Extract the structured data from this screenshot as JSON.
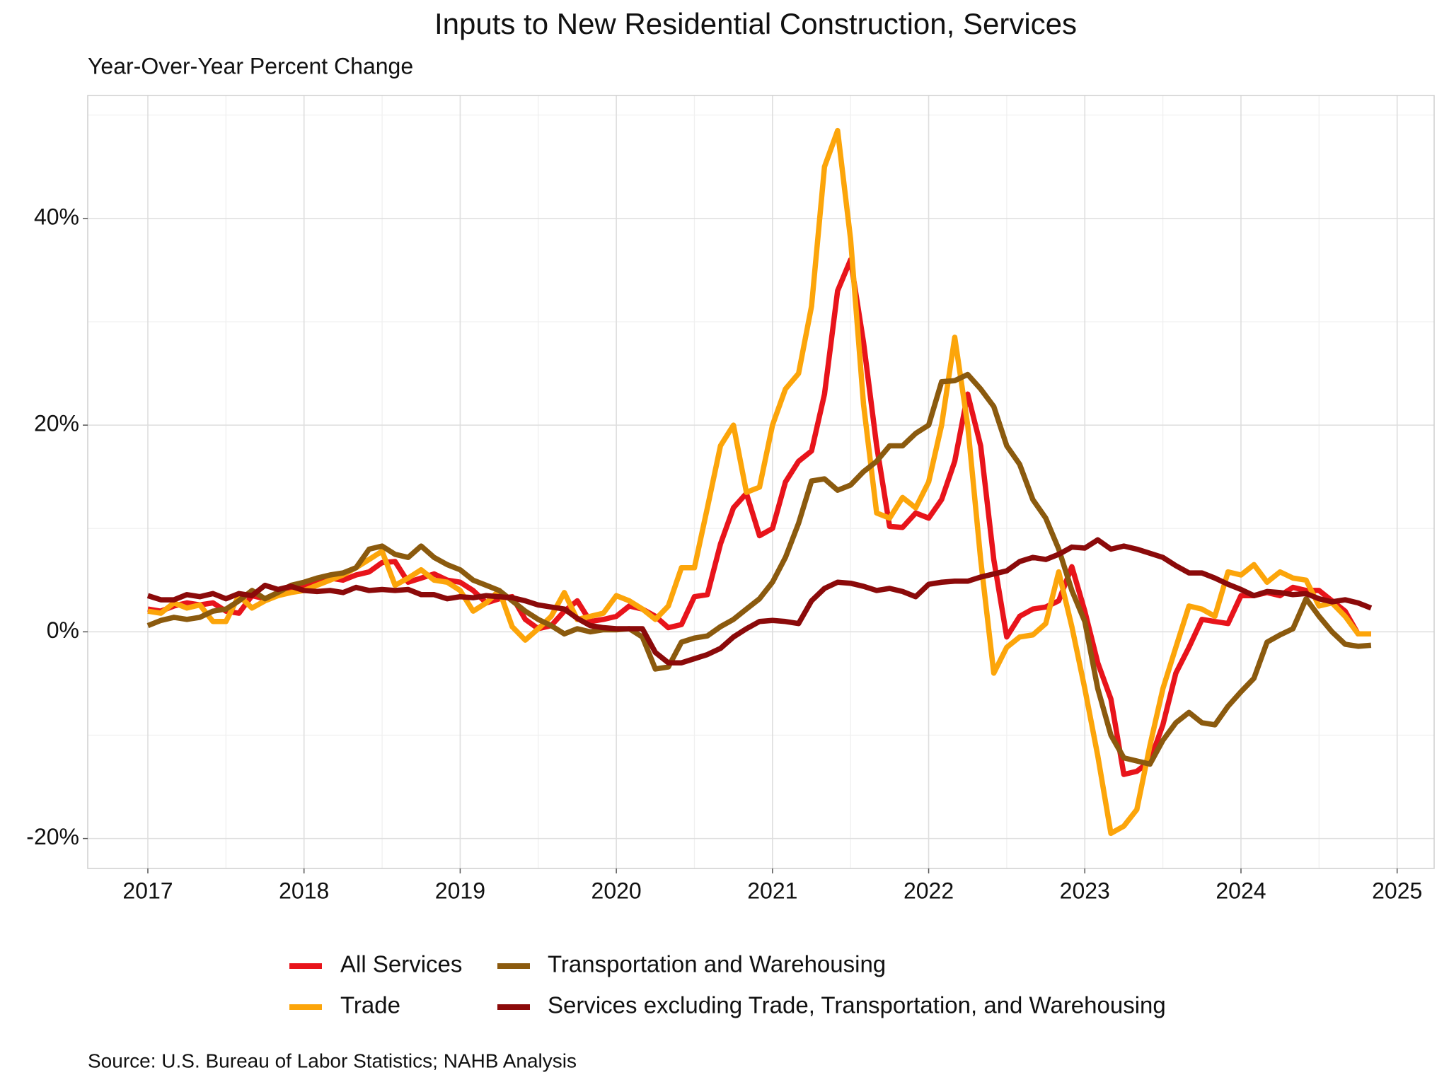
{
  "chart_data": {
    "type": "line",
    "title": "Inputs to New Residential Construction, Services",
    "subtitle": "Year-Over-Year Percent Change",
    "source": "Source: U.S. Bureau of Labor Statistics; NAHB Analysis",
    "grid": true,
    "legend": "bottom",
    "xlim": [
      2016.615,
      2025.237
    ],
    "ylim": [
      -22.9,
      51.9
    ],
    "xticks": [
      2017,
      2018,
      2019,
      2020,
      2021,
      2022,
      2023,
      2024,
      2025
    ],
    "minor_xticks": [
      2017.5,
      2018.5,
      2019.5,
      2020.5,
      2021.5,
      2022.5,
      2023.5,
      2024.5
    ],
    "yticks": [
      {
        "value": -20,
        "label": "-20%"
      },
      {
        "value": 0,
        "label": "0%"
      },
      {
        "value": 20,
        "label": "20%"
      },
      {
        "value": 40,
        "label": "40%"
      }
    ],
    "minor_yticks": [
      -10,
      10,
      30,
      50
    ],
    "x": [
      2017,
      2017.083,
      2017.167,
      2017.25,
      2017.333,
      2017.417,
      2017.5,
      2017.583,
      2017.667,
      2017.75,
      2017.833,
      2017.917,
      2018,
      2018.083,
      2018.167,
      2018.25,
      2018.333,
      2018.417,
      2018.5,
      2018.583,
      2018.667,
      2018.75,
      2018.833,
      2018.917,
      2019,
      2019.083,
      2019.167,
      2019.25,
      2019.333,
      2019.417,
      2019.5,
      2019.583,
      2019.667,
      2019.75,
      2019.833,
      2019.917,
      2020,
      2020.083,
      2020.167,
      2020.25,
      2020.333,
      2020.417,
      2020.5,
      2020.583,
      2020.667,
      2020.75,
      2020.833,
      2020.917,
      2021,
      2021.083,
      2021.167,
      2021.25,
      2021.333,
      2021.417,
      2021.5,
      2021.583,
      2021.667,
      2021.75,
      2021.833,
      2021.917,
      2022,
      2022.083,
      2022.167,
      2022.25,
      2022.333,
      2022.417,
      2022.5,
      2022.583,
      2022.667,
      2022.75,
      2022.833,
      2022.917,
      2023,
      2023.083,
      2023.167,
      2023.25,
      2023.333,
      2023.417,
      2023.5,
      2023.583,
      2023.667,
      2023.75,
      2023.833,
      2023.917,
      2024,
      2024.083,
      2024.167,
      2024.25,
      2024.333,
      2024.417,
      2024.5,
      2024.583,
      2024.667,
      2024.75,
      2024.833
    ],
    "series": [
      {
        "name": "All Services",
        "color": "#e8141b",
        "values": [
          2.2,
          2.0,
          2.5,
          2.8,
          2.6,
          2.8,
          2.0,
          1.8,
          3.5,
          3.2,
          3.8,
          4.0,
          4.3,
          4.8,
          5.2,
          5.0,
          5.5,
          5.8,
          6.7,
          6.8,
          4.8,
          5.2,
          5.6,
          5.0,
          4.8,
          4.0,
          2.8,
          3.2,
          3.4,
          1.2,
          0.3,
          0.6,
          2.0,
          3.0,
          1.0,
          1.2,
          1.5,
          2.5,
          2.2,
          1.5,
          0.4,
          0.7,
          3.4,
          3.6,
          8.5,
          12.0,
          13.4,
          9.3,
          10.0,
          14.5,
          16.5,
          17.5,
          23.0,
          33.0,
          36.0,
          28.0,
          18.0,
          10.2,
          10.1,
          11.5,
          11.0,
          12.8,
          16.5,
          23.0,
          18.0,
          7.0,
          -0.5,
          1.5,
          2.2,
          2.4,
          3.0,
          6.3,
          2.0,
          -3.0,
          -6.5,
          -13.8,
          -13.5,
          -12.5,
          -9.0,
          -4.0,
          -1.5,
          1.2,
          1.0,
          0.8,
          3.5,
          3.5,
          3.8,
          3.5,
          4.3,
          4.0,
          4.0,
          3.0,
          2.0,
          -0.2,
          -0.2
        ]
      },
      {
        "name": "Trade",
        "color": "#fca50a",
        "values": [
          2.0,
          1.8,
          2.8,
          2.3,
          2.6,
          1.0,
          1.0,
          3.5,
          2.3,
          3.0,
          3.5,
          3.8,
          4.0,
          4.5,
          5.0,
          5.5,
          6.2,
          7.0,
          7.8,
          4.5,
          5.2,
          6.0,
          5.0,
          4.8,
          4.0,
          2.0,
          2.8,
          4.0,
          0.5,
          -0.8,
          0.3,
          1.5,
          3.8,
          1.2,
          1.5,
          1.8,
          3.5,
          3.0,
          2.2,
          1.2,
          2.5,
          6.2,
          6.2,
          12.0,
          18.0,
          20.0,
          13.5,
          14.0,
          20.0,
          23.5,
          25.0,
          31.5,
          45.0,
          48.5,
          38.0,
          22.0,
          11.5,
          11.0,
          13.0,
          12.0,
          14.5,
          20.0,
          28.5,
          20.0,
          7.0,
          -4.0,
          -1.5,
          -0.5,
          -0.3,
          0.8,
          5.8,
          0.5,
          -5.5,
          -12.0,
          -19.5,
          -18.8,
          -17.2,
          -11.0,
          -5.5,
          -1.5,
          2.5,
          2.2,
          1.5,
          5.8,
          5.5,
          6.5,
          4.8,
          5.8,
          5.2,
          5.0,
          2.5,
          2.8,
          1.5,
          -0.2,
          -0.2
        ]
      },
      {
        "name": "Transportation and Warehousing",
        "color": "#8b5a0e",
        "values": [
          0.6,
          1.1,
          1.4,
          1.2,
          1.4,
          2.0,
          2.2,
          3.0,
          4.0,
          3.2,
          3.8,
          4.5,
          4.8,
          5.2,
          5.5,
          5.7,
          6.2,
          8.0,
          8.3,
          7.5,
          7.2,
          8.3,
          7.2,
          6.5,
          6.0,
          5.0,
          4.5,
          4.0,
          3.0,
          2.0,
          1.2,
          0.6,
          -0.2,
          0.3,
          0.0,
          0.2,
          0.2,
          0.3,
          -0.5,
          -3.6,
          -3.4,
          -1.0,
          -0.6,
          -0.4,
          0.5,
          1.2,
          2.2,
          3.2,
          4.8,
          7.2,
          10.5,
          14.6,
          14.8,
          13.7,
          14.2,
          15.5,
          16.5,
          18.0,
          18.0,
          19.2,
          20.0,
          24.2,
          24.3,
          24.9,
          23.5,
          21.8,
          18.0,
          16.2,
          12.8,
          11.0,
          8.0,
          4.0,
          1.0,
          -5.5,
          -10.0,
          -12.2,
          -12.5,
          -12.8,
          -10.5,
          -8.8,
          -7.8,
          -8.8,
          -9.0,
          -7.2,
          -5.8,
          -4.5,
          -1.0,
          -0.3,
          0.3,
          3.2,
          1.5,
          0.0,
          -1.2,
          -1.4,
          -1.3
        ]
      },
      {
        "name": "Services excluding Trade, Transportation, and Warehousing",
        "color": "#8b0a0a",
        "values": [
          3.5,
          3.1,
          3.1,
          3.6,
          3.4,
          3.7,
          3.2,
          3.7,
          3.5,
          4.5,
          4.1,
          4.4,
          4.0,
          3.9,
          4.0,
          3.8,
          4.3,
          4.0,
          4.1,
          4.0,
          4.1,
          3.6,
          3.6,
          3.2,
          3.4,
          3.3,
          3.5,
          3.4,
          3.3,
          3.0,
          2.6,
          2.4,
          2.2,
          1.3,
          0.6,
          0.4,
          0.3,
          0.3,
          0.3,
          -2.0,
          -3.0,
          -3.0,
          -2.6,
          -2.2,
          -1.6,
          -0.5,
          0.3,
          1.0,
          1.1,
          1.0,
          0.8,
          3.0,
          4.2,
          4.8,
          4.7,
          4.4,
          4.0,
          4.2,
          3.9,
          3.4,
          4.6,
          4.8,
          4.9,
          4.9,
          5.3,
          5.6,
          5.9,
          6.8,
          7.2,
          7.0,
          7.5,
          8.2,
          8.1,
          8.9,
          8.0,
          8.3,
          8.0,
          7.6,
          7.2,
          6.4,
          5.7,
          5.7,
          5.2,
          4.6,
          4.1,
          3.5,
          3.9,
          3.8,
          3.6,
          3.7,
          3.2,
          2.9,
          3.1,
          2.8,
          2.3
        ]
      }
    ]
  }
}
